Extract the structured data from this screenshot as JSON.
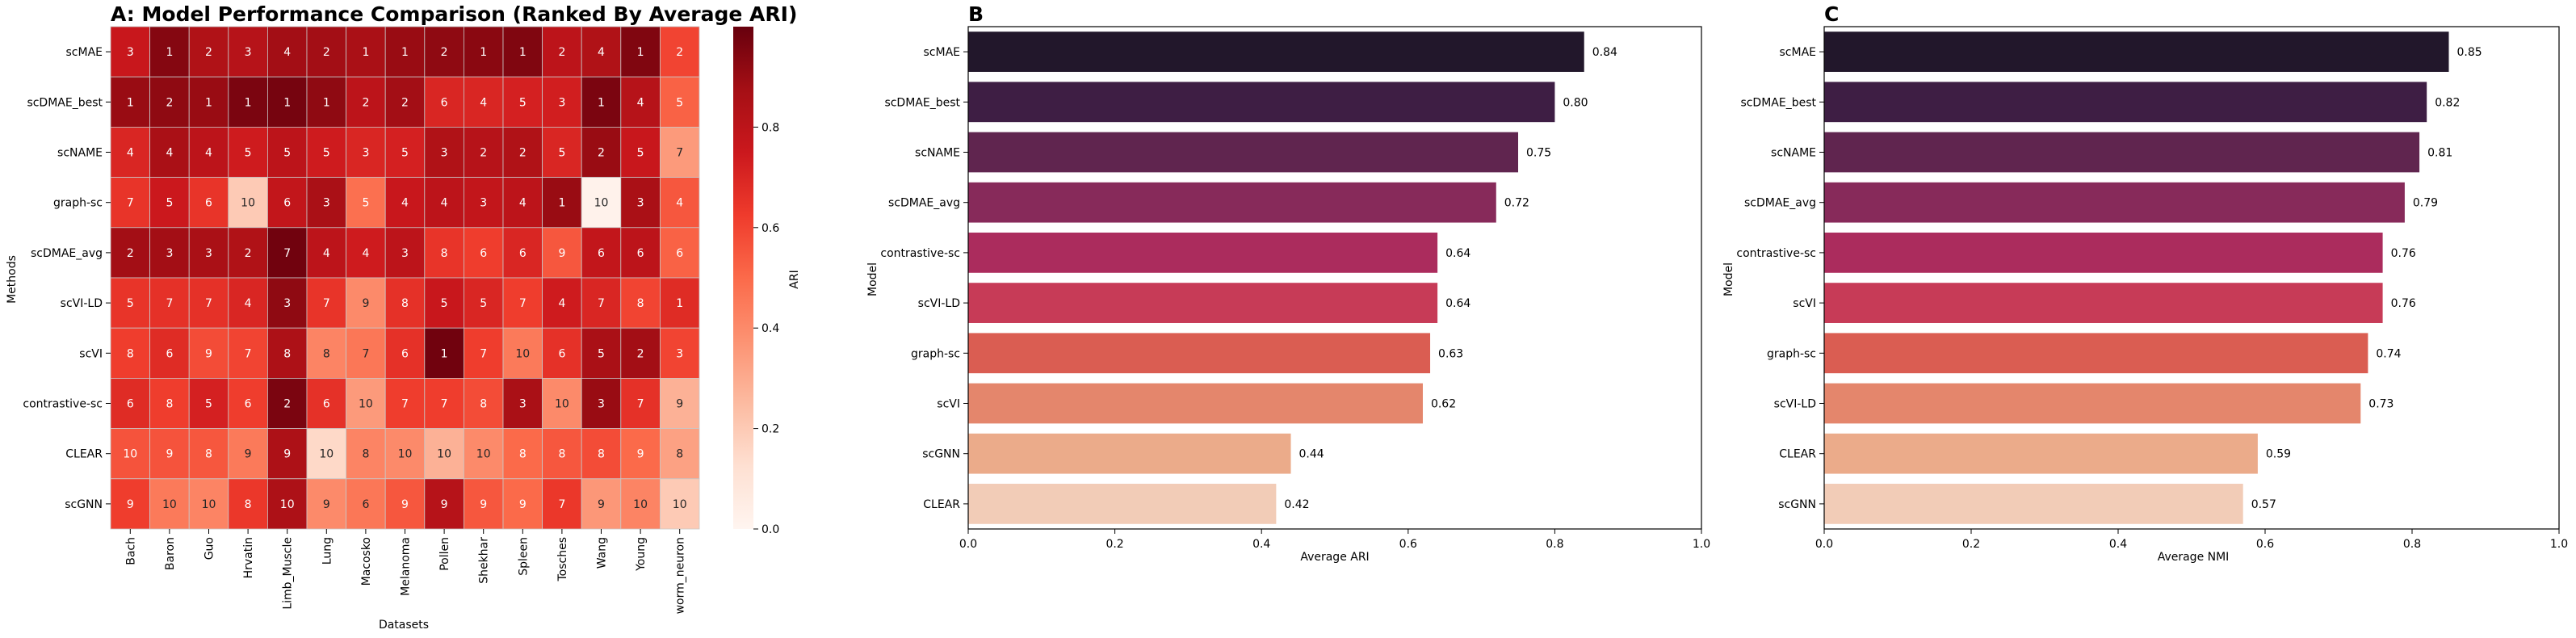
{
  "chart_data": [
    {
      "panel": "A",
      "type": "heatmap",
      "title": "A: Model Performance Comparison (Ranked By Average ARI)",
      "xlabel": "Datasets",
      "ylabel": "Methods",
      "colorbar_label": "ARI",
      "colorbar_ticks": [
        "0.0",
        "0.2",
        "0.4",
        "0.6",
        "0.8"
      ],
      "colormap": "Reds",
      "value_range": [
        0,
        1
      ],
      "x": [
        "Bach",
        "Baron",
        "Guo",
        "Hrvatin",
        "Limb_Muscle",
        "Lung",
        "Macosko",
        "Melanoma",
        "Pollen",
        "Shekhar",
        "Spleen",
        "Tosches",
        "Wang",
        "Young",
        "worm_neuron"
      ],
      "y": [
        "scMAE",
        "scDMAE_best",
        "scNAME",
        "graph-sc",
        "scDMAE_avg",
        "scVI-LD",
        "scVI",
        "contrastive-sc",
        "CLEAR",
        "scGNN"
      ],
      "ranks": [
        [
          3,
          1,
          2,
          3,
          4,
          2,
          1,
          1,
          2,
          1,
          1,
          2,
          4,
          1,
          2
        ],
        [
          1,
          2,
          1,
          1,
          1,
          1,
          2,
          2,
          6,
          4,
          5,
          3,
          1,
          4,
          5
        ],
        [
          4,
          4,
          4,
          5,
          5,
          5,
          3,
          5,
          3,
          2,
          2,
          5,
          2,
          5,
          7
        ],
        [
          7,
          5,
          6,
          10,
          6,
          3,
          5,
          4,
          4,
          3,
          4,
          1,
          10,
          3,
          4
        ],
        [
          2,
          3,
          3,
          2,
          7,
          4,
          4,
          3,
          8,
          6,
          6,
          9,
          6,
          6,
          6
        ],
        [
          5,
          7,
          7,
          4,
          3,
          7,
          9,
          8,
          5,
          5,
          7,
          4,
          7,
          8,
          1
        ],
        [
          8,
          6,
          9,
          7,
          8,
          8,
          7,
          6,
          1,
          7,
          10,
          6,
          5,
          2,
          3
        ],
        [
          6,
          8,
          5,
          6,
          2,
          6,
          10,
          7,
          7,
          8,
          3,
          10,
          3,
          7,
          9
        ],
        [
          10,
          9,
          8,
          9,
          9,
          10,
          8,
          10,
          10,
          10,
          8,
          8,
          8,
          9,
          8
        ],
        [
          9,
          10,
          10,
          8,
          10,
          9,
          6,
          9,
          9,
          9,
          9,
          7,
          9,
          10,
          10
        ]
      ],
      "values": [
        [
          0.76,
          0.94,
          0.84,
          0.82,
          0.88,
          0.88,
          0.86,
          0.9,
          0.92,
          0.93,
          0.95,
          0.8,
          0.84,
          0.95,
          0.6
        ],
        [
          0.9,
          0.92,
          0.9,
          0.96,
          0.97,
          0.92,
          0.8,
          0.88,
          0.7,
          0.7,
          0.72,
          0.73,
          0.96,
          0.82,
          0.52
        ],
        [
          0.7,
          0.86,
          0.8,
          0.74,
          0.8,
          0.74,
          0.7,
          0.72,
          0.84,
          0.82,
          0.84,
          0.7,
          0.9,
          0.76,
          0.35
        ],
        [
          0.65,
          0.75,
          0.65,
          0.2,
          0.78,
          0.86,
          0.48,
          0.76,
          0.8,
          0.78,
          0.8,
          0.9,
          0.02,
          0.86,
          0.55
        ],
        [
          0.88,
          0.88,
          0.86,
          0.84,
          0.98,
          0.8,
          0.74,
          0.8,
          0.65,
          0.62,
          0.7,
          0.55,
          0.78,
          0.8,
          0.52
        ],
        [
          0.65,
          0.66,
          0.66,
          0.7,
          0.92,
          0.65,
          0.4,
          0.66,
          0.76,
          0.7,
          0.62,
          0.74,
          0.7,
          0.6,
          0.68
        ],
        [
          0.62,
          0.68,
          0.58,
          0.6,
          0.85,
          0.42,
          0.46,
          0.66,
          0.98,
          0.62,
          0.45,
          0.66,
          0.86,
          0.88,
          0.6
        ],
        [
          0.68,
          0.62,
          0.72,
          0.62,
          0.96,
          0.66,
          0.35,
          0.62,
          0.62,
          0.58,
          0.86,
          0.4,
          0.9,
          0.66,
          0.28
        ],
        [
          0.56,
          0.56,
          0.55,
          0.45,
          0.85,
          0.15,
          0.42,
          0.4,
          0.28,
          0.4,
          0.5,
          0.55,
          0.58,
          0.5,
          0.33
        ],
        [
          0.62,
          0.45,
          0.42,
          0.64,
          0.85,
          0.4,
          0.46,
          0.55,
          0.82,
          0.55,
          0.5,
          0.64,
          0.36,
          0.42,
          0.2
        ]
      ]
    },
    {
      "panel": "B",
      "type": "bar",
      "orientation": "horizontal",
      "title": "B",
      "xlabel": "Average ARI",
      "ylabel": "Model",
      "xlim": [
        0,
        1.0
      ],
      "xticks": [
        "0.0",
        "0.2",
        "0.4",
        "0.6",
        "0.8",
        "1.0"
      ],
      "categories": [
        "scMAE",
        "scDMAE_best",
        "scNAME",
        "scDMAE_avg",
        "contrastive-sc",
        "scVI-LD",
        "graph-sc",
        "scVI",
        "scGNN",
        "CLEAR"
      ],
      "values": [
        0.84,
        0.8,
        0.75,
        0.72,
        0.64,
        0.64,
        0.63,
        0.62,
        0.44,
        0.42
      ],
      "labels": [
        "0.84",
        "0.80",
        "0.75",
        "0.72",
        "0.64",
        "0.64",
        "0.63",
        "0.62",
        "0.44",
        "0.42"
      ],
      "colors": [
        "#22172b",
        "#3e1e44",
        "#60254f",
        "#872a5a",
        "#ab2c5d",
        "#c73b57",
        "#da5d52",
        "#e4866c",
        "#ebab8a",
        "#f2ccb7"
      ]
    },
    {
      "panel": "C",
      "type": "bar",
      "orientation": "horizontal",
      "title": "C",
      "xlabel": "Average NMI",
      "ylabel": "Model",
      "xlim": [
        0,
        1.0
      ],
      "xticks": [
        "0.0",
        "0.2",
        "0.4",
        "0.6",
        "0.8",
        "1.0"
      ],
      "categories": [
        "scMAE",
        "scDMAE_best",
        "scNAME",
        "scDMAE_avg",
        "contrastive-sc",
        "scVI",
        "graph-sc",
        "scVI-LD",
        "CLEAR",
        "scGNN"
      ],
      "values": [
        0.85,
        0.82,
        0.81,
        0.79,
        0.76,
        0.76,
        0.74,
        0.73,
        0.59,
        0.57
      ],
      "labels": [
        "0.85",
        "0.82",
        "0.81",
        "0.79",
        "0.76",
        "0.76",
        "0.74",
        "0.73",
        "0.59",
        "0.57"
      ],
      "colors": [
        "#22172b",
        "#3e1e44",
        "#60254f",
        "#872a5a",
        "#ab2c5d",
        "#c73b57",
        "#da5d52",
        "#e4866c",
        "#ebab8a",
        "#f2ccb7"
      ]
    }
  ]
}
